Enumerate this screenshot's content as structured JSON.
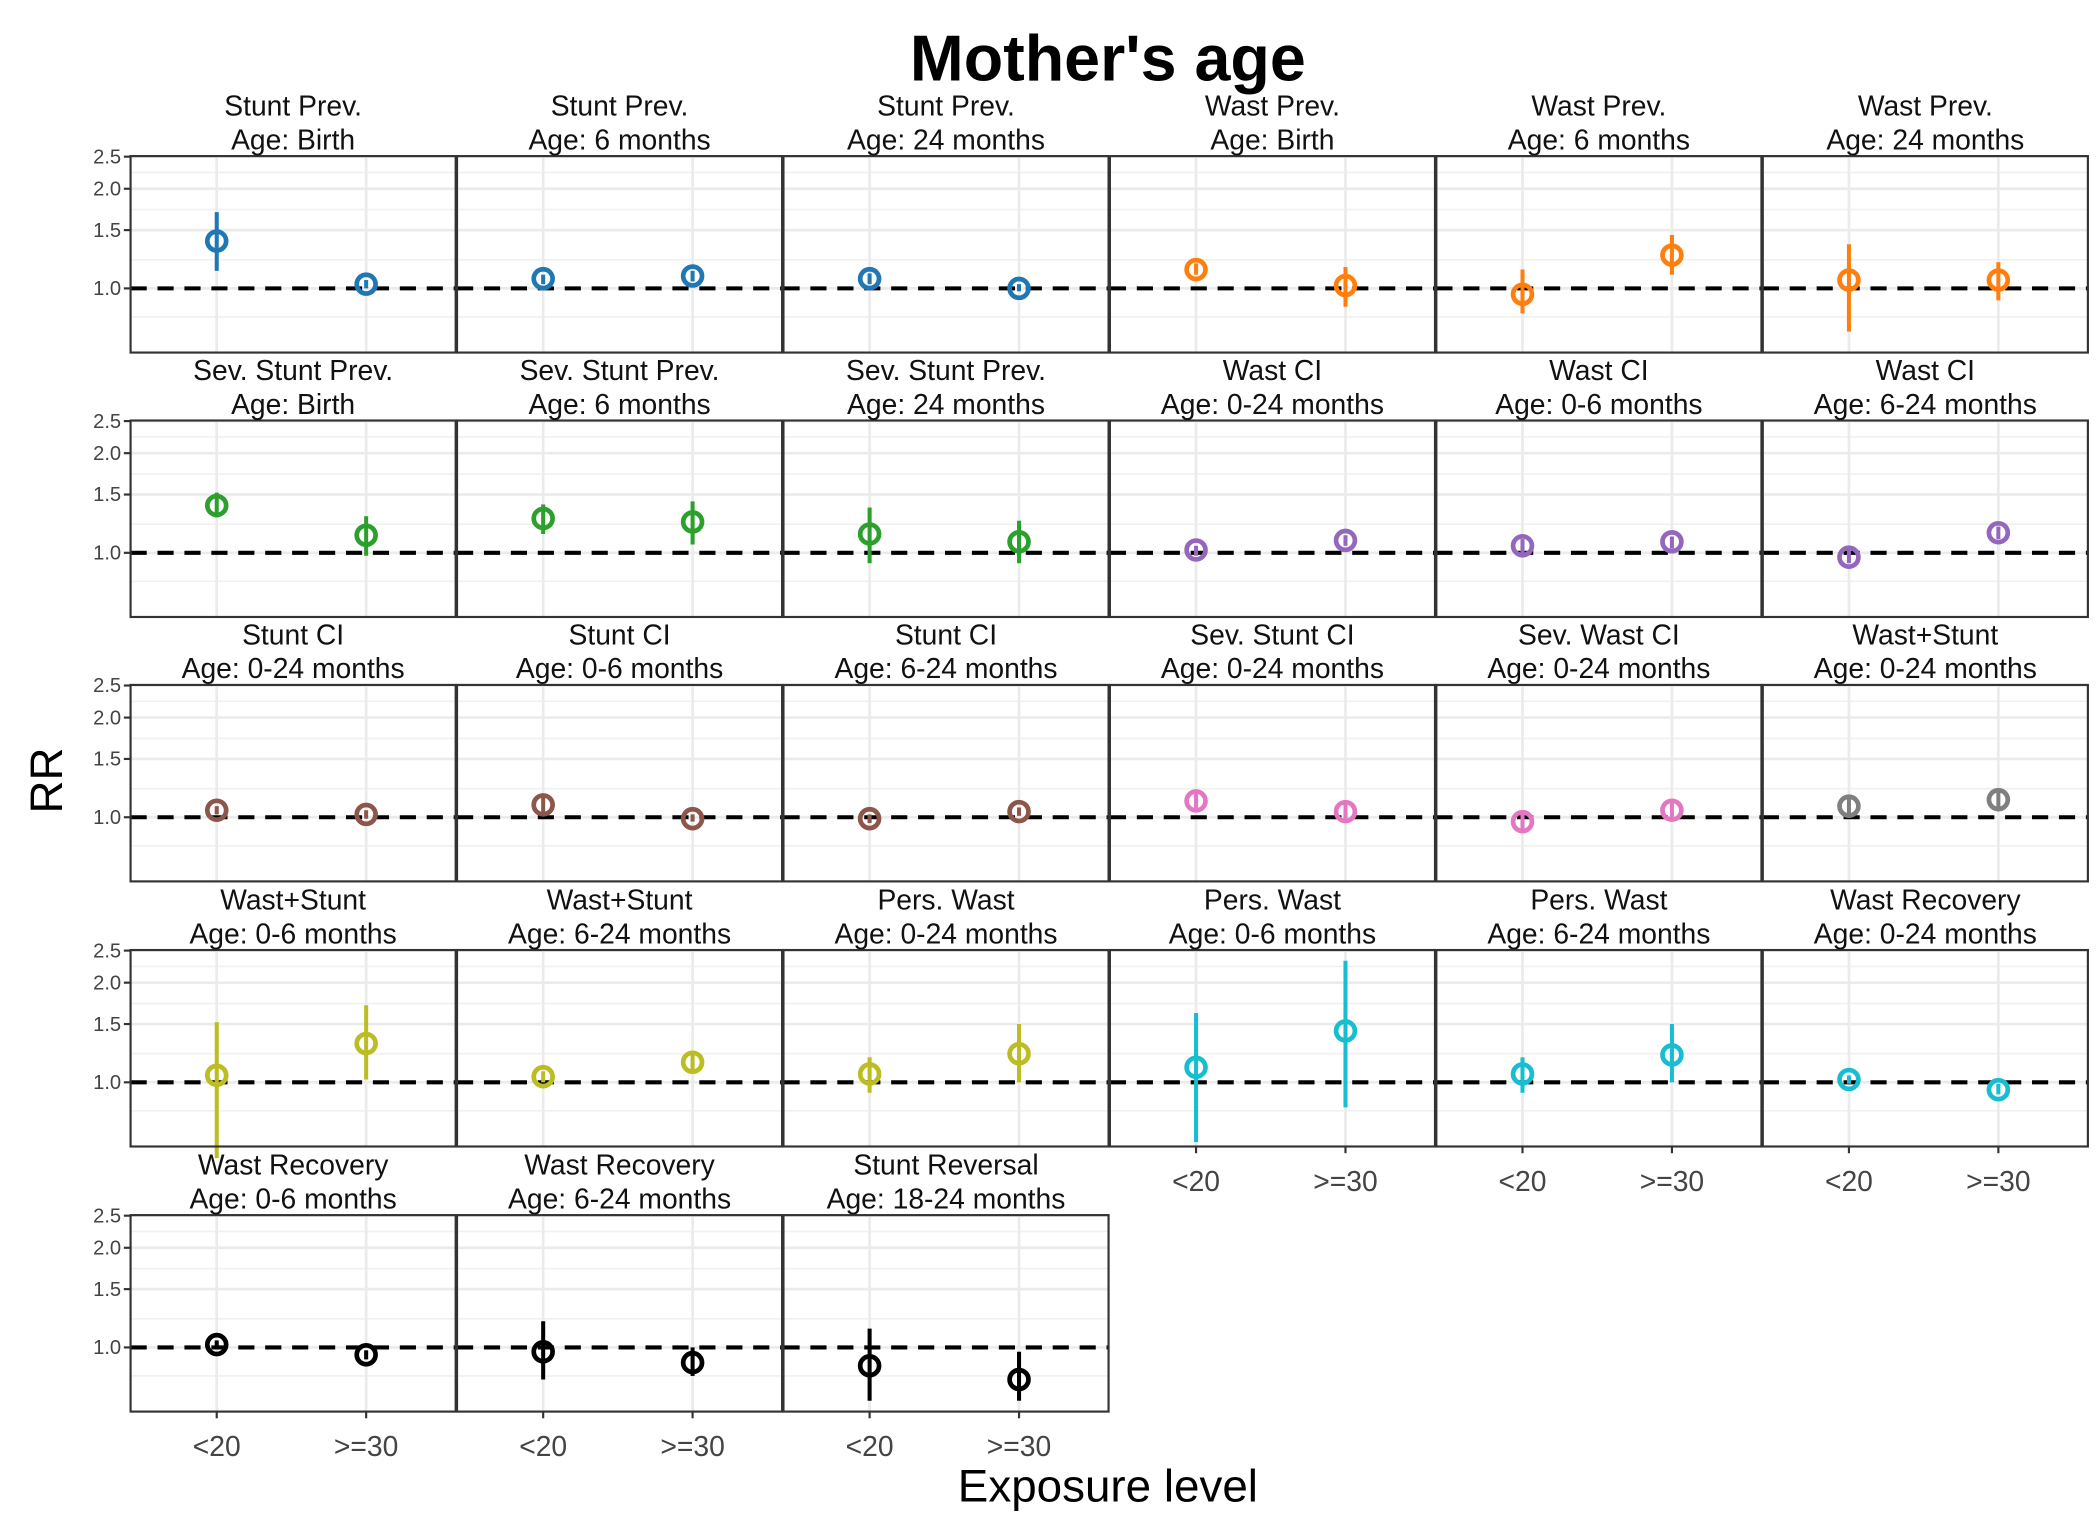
{
  "chart_data": {
    "type": "scatter",
    "subtype": "point-range facets",
    "title": "Mother's age",
    "xlabel": "Exposure level",
    "ylabel": "RR",
    "categories": [
      "<20",
      ">=30"
    ],
    "y_scale": "log",
    "ylim": [
      0.64,
      2.51
    ],
    "yticks": [
      "1.0",
      "1.5",
      "2.0",
      "2.5"
    ],
    "reference_line": 1.0,
    "grid": true,
    "panels": [
      {
        "outcome": "Stunt Prev.",
        "age": "Age: Birth",
        "color": "#1f77b4",
        "values": [
          1.39,
          1.03
        ],
        "ci_lower": [
          1.13,
          1.0
        ],
        "ci_upper": [
          1.7,
          1.06
        ]
      },
      {
        "outcome": "Stunt Prev.",
        "age": "Age: 6 months",
        "color": "#1f77b4",
        "values": [
          1.07,
          1.09
        ],
        "ci_lower": [
          1.03,
          1.05
        ],
        "ci_upper": [
          1.1,
          1.13
        ]
      },
      {
        "outcome": "Stunt Prev.",
        "age": "Age: 24 months",
        "color": "#1f77b4",
        "values": [
          1.07,
          1.0
        ],
        "ci_lower": [
          1.03,
          0.98
        ],
        "ci_upper": [
          1.11,
          1.03
        ]
      },
      {
        "outcome": "Wast Prev.",
        "age": "Age: Birth",
        "color": "#ff7f0e",
        "values": [
          1.14,
          1.02
        ],
        "ci_lower": [
          1.1,
          0.88
        ],
        "ci_upper": [
          1.19,
          1.16
        ]
      },
      {
        "outcome": "Wast Prev.",
        "age": "Age: 6 months",
        "color": "#ff7f0e",
        "values": [
          0.96,
          1.26
        ],
        "ci_lower": [
          0.84,
          1.1
        ],
        "ci_upper": [
          1.14,
          1.45
        ]
      },
      {
        "outcome": "Wast Prev.",
        "age": "Age: 24 months",
        "color": "#ff7f0e",
        "values": [
          1.06,
          1.06
        ],
        "ci_lower": [
          0.74,
          0.92
        ],
        "ci_upper": [
          1.36,
          1.2
        ]
      },
      {
        "outcome": "Sev. Stunt Prev.",
        "age": "Age: Birth",
        "color": "#2ca02c",
        "values": [
          1.39,
          1.13
        ],
        "ci_lower": [
          1.28,
          0.98
        ],
        "ci_upper": [
          1.52,
          1.29
        ]
      },
      {
        "outcome": "Sev. Stunt Prev.",
        "age": "Age: 6 months",
        "color": "#2ca02c",
        "values": [
          1.27,
          1.24
        ],
        "ci_lower": [
          1.14,
          1.06
        ],
        "ci_upper": [
          1.4,
          1.43
        ]
      },
      {
        "outcome": "Sev. Stunt Prev.",
        "age": "Age: 24 months",
        "color": "#2ca02c",
        "values": [
          1.14,
          1.08
        ],
        "ci_lower": [
          0.93,
          0.93
        ],
        "ci_upper": [
          1.37,
          1.25
        ]
      },
      {
        "outcome": "Wast CI",
        "age": "Age: 0-24 months",
        "color": "#9467bd",
        "values": [
          1.02,
          1.09
        ],
        "ci_lower": [
          0.98,
          1.05
        ],
        "ci_upper": [
          1.05,
          1.13
        ]
      },
      {
        "outcome": "Wast CI",
        "age": "Age: 0-6 months",
        "color": "#9467bd",
        "values": [
          1.05,
          1.08
        ],
        "ci_lower": [
          0.99,
          1.03
        ],
        "ci_upper": [
          1.1,
          1.12
        ]
      },
      {
        "outcome": "Wast CI",
        "age": "Age: 6-24 months",
        "color": "#9467bd",
        "values": [
          0.97,
          1.15
        ],
        "ci_lower": [
          0.93,
          1.1
        ],
        "ci_upper": [
          1.02,
          1.2
        ]
      },
      {
        "outcome": "Stunt CI",
        "age": "Age: 0-24 months",
        "color": "#8c564b",
        "values": [
          1.05,
          1.02
        ],
        "ci_lower": [
          1.02,
          0.99
        ],
        "ci_upper": [
          1.08,
          1.05
        ]
      },
      {
        "outcome": "Stunt CI",
        "age": "Age: 0-6 months",
        "color": "#8c564b",
        "values": [
          1.09,
          0.99
        ],
        "ci_lower": [
          1.03,
          0.97
        ],
        "ci_upper": [
          1.16,
          1.02
        ]
      },
      {
        "outcome": "Stunt CI",
        "age": "Age: 6-24 months",
        "color": "#8c564b",
        "values": [
          0.99,
          1.04
        ],
        "ci_lower": [
          0.96,
          1.01
        ],
        "ci_upper": [
          1.02,
          1.07
        ]
      },
      {
        "outcome": "Sev. Stunt CI",
        "age": "Age: 0-24 months",
        "color": "#e377c2",
        "values": [
          1.12,
          1.04
        ],
        "ci_lower": [
          1.06,
          0.99
        ],
        "ci_upper": [
          1.19,
          1.1
        ]
      },
      {
        "outcome": "Sev. Wast CI",
        "age": "Age: 0-24 months",
        "color": "#e377c2",
        "values": [
          0.97,
          1.05
        ],
        "ci_lower": [
          0.9,
          0.98
        ],
        "ci_upper": [
          1.04,
          1.12
        ]
      },
      {
        "outcome": "Wast+Stunt",
        "age": "Age: 0-24 months",
        "color": "#7f7f7f",
        "values": [
          1.08,
          1.13
        ],
        "ci_lower": [
          1.0,
          1.07
        ],
        "ci_upper": [
          1.17,
          1.2
        ]
      },
      {
        "outcome": "Wast+Stunt",
        "age": "Age: 0-6 months",
        "color": "#bcbd22",
        "values": [
          1.05,
          1.31
        ],
        "ci_lower": [
          0.59,
          1.02
        ],
        "ci_upper": [
          1.52,
          1.71
        ]
      },
      {
        "outcome": "Wast+Stunt",
        "age": "Age: 6-24 months",
        "color": "#bcbd22",
        "values": [
          1.04,
          1.15
        ],
        "ci_lower": [
          1.0,
          1.09
        ],
        "ci_upper": [
          1.08,
          1.22
        ]
      },
      {
        "outcome": "Pers. Wast",
        "age": "Age: 0-24 months",
        "color": "#bcbd22",
        "values": [
          1.06,
          1.22
        ],
        "ci_lower": [
          0.93,
          1.0
        ],
        "ci_upper": [
          1.19,
          1.5
        ]
      },
      {
        "outcome": "Pers. Wast",
        "age": "Age: 0-6 months",
        "color": "#17becf",
        "values": [
          1.11,
          1.43
        ],
        "ci_lower": [
          0.66,
          0.84
        ],
        "ci_upper": [
          1.62,
          2.33
        ]
      },
      {
        "outcome": "Pers. Wast",
        "age": "Age: 6-24 months",
        "color": "#17becf",
        "values": [
          1.06,
          1.21
        ],
        "ci_lower": [
          0.93,
          1.0
        ],
        "ci_upper": [
          1.19,
          1.5
        ]
      },
      {
        "outcome": "Wast Recovery",
        "age": "Age: 0-24 months",
        "color": "#17becf",
        "values": [
          1.02,
          0.95
        ],
        "ci_lower": [
          0.99,
          0.92
        ],
        "ci_upper": [
          1.05,
          0.99
        ]
      },
      {
        "outcome": "Wast Recovery",
        "age": "Age: 0-6 months",
        "color": "#000000",
        "values": [
          1.02,
          0.95
        ],
        "ci_lower": [
          0.99,
          0.92
        ],
        "ci_upper": [
          1.05,
          0.98
        ]
      },
      {
        "outcome": "Wast Recovery",
        "age": "Age: 6-24 months",
        "color": "#000000",
        "values": [
          0.97,
          0.9
        ],
        "ci_lower": [
          0.8,
          0.82
        ],
        "ci_upper": [
          1.2,
          1.0
        ]
      },
      {
        "outcome": "Stunt Reversal",
        "age": "Age: 18-24 months",
        "color": "#000000",
        "values": [
          0.88,
          0.8
        ],
        "ci_lower": [
          0.69,
          0.69
        ],
        "ci_upper": [
          1.14,
          0.97
        ]
      }
    ]
  }
}
